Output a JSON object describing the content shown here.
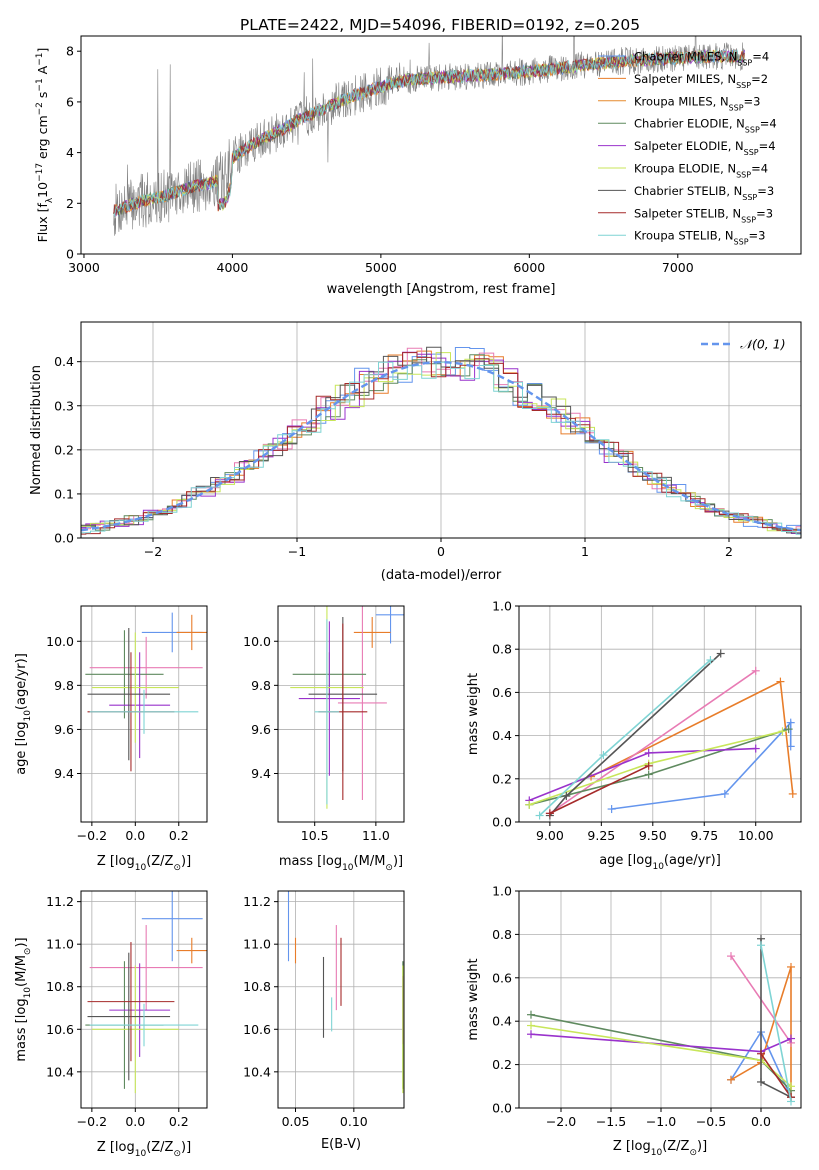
{
  "figure_title": "PLATE=2422, MJD=54096, FIBERID=0192, z=0.205",
  "colors": {
    "chabrier_miles": "#6495ed",
    "salpeter_miles": "#e87d2a",
    "kroupa_miles": "#e58a2e",
    "chabrier_elodie": "#5f8a5f",
    "salpeter_elodie": "#9932cc",
    "kroupa_elodie": "#c8e65a",
    "chabrier_stelib": "#555555",
    "salpeter_stelib": "#a52a2a",
    "kroupa_stelib": "#7fd4d4",
    "spectrum_data": "#808080",
    "pink_series": "#e87bb4",
    "grid": "#b0b0b0"
  },
  "chart_data": [
    {
      "type": "line",
      "id": "spectrum",
      "xlabel": "wavelength [Angstrom, rest frame]",
      "ylabel": "Flux [f",
      "ylabel_parts": {
        "a": "Flux [f",
        "sub": "λ",
        "b": "10",
        "sup1": "−17",
        "c": " erg cm",
        "sup2": "−2",
        "d": " s",
        "sup3": "−1",
        "e": " A",
        "sup4": "−1",
        "f": "]"
      },
      "xlim": [
        2980,
        7830
      ],
      "ylim": [
        0,
        8.6
      ],
      "xticks": [
        3000,
        4000,
        5000,
        6000,
        7000
      ],
      "yticks": [
        0,
        2,
        4,
        6,
        8
      ],
      "legend": [
        {
          "name": "Chabrier MILES, N",
          "sub": "SSP",
          "tail": "=4",
          "color": "#6495ed"
        },
        {
          "name": "Salpeter MILES, N",
          "sub": "SSP",
          "tail": "=2",
          "color": "#e87d2a"
        },
        {
          "name": "Kroupa MILES, N",
          "sub": "SSP",
          "tail": "=3",
          "color": "#e58a2e"
        },
        {
          "name": "Chabrier ELODIE, N",
          "sub": "SSP",
          "tail": "=4",
          "color": "#5f8a5f"
        },
        {
          "name": "Salpeter ELODIE, N",
          "sub": "SSP",
          "tail": "=4",
          "color": "#9932cc"
        },
        {
          "name": "Kroupa ELODIE, N",
          "sub": "SSP",
          "tail": "=4",
          "color": "#c8e65a"
        },
        {
          "name": "Chabrier STELIB, N",
          "sub": "SSP",
          "tail": "=3",
          "color": "#555555"
        },
        {
          "name": "Salpeter STELIB, N",
          "sub": "SSP",
          "tail": "=3",
          "color": "#a52a2a"
        },
        {
          "name": "Kroupa STELIB, N",
          "sub": "SSP",
          "tail": "=3",
          "color": "#7fd4d4"
        }
      ],
      "continuum": [
        [
          3200,
          1.7
        ],
        [
          3400,
          2.1
        ],
        [
          3550,
          2.3
        ],
        [
          3700,
          2.6
        ],
        [
          3850,
          2.8
        ],
        [
          3950,
          3.0
        ],
        [
          4000,
          3.8
        ],
        [
          4150,
          4.4
        ],
        [
          4300,
          4.8
        ],
        [
          4450,
          5.3
        ],
        [
          4600,
          5.7
        ],
        [
          4800,
          6.2
        ],
        [
          5000,
          6.6
        ],
        [
          5200,
          6.9
        ],
        [
          5500,
          7.0
        ],
        [
          5800,
          7.1
        ],
        [
          6000,
          7.2
        ],
        [
          6300,
          7.4
        ],
        [
          6600,
          7.6
        ],
        [
          6900,
          7.7
        ],
        [
          7200,
          7.8
        ],
        [
          7450,
          7.8
        ]
      ]
    },
    {
      "type": "line",
      "id": "residuals",
      "xlabel": "(data-model)/error",
      "ylabel": "Normed distribution",
      "xlim": [
        -2.5,
        2.5
      ],
      "ylim": [
        0,
        0.49
      ],
      "xticks": [
        -2,
        -1,
        0,
        1,
        2
      ],
      "yticks": [
        0.0,
        0.1,
        0.2,
        0.3,
        0.4
      ],
      "legend": [
        {
          "name": "𝒩(0, 1)",
          "color": "#6495ed",
          "style": "dashed"
        }
      ],
      "bin_width": 0.1
    },
    {
      "type": "scatter",
      "id": "age_vs_Z",
      "xlabel_parts": {
        "a": "Z [log",
        "sub": "10",
        "b": "(Z/Z",
        "sub2": "⊙",
        "c": ")]"
      },
      "ylabel_parts": {
        "a": "age  [log",
        "sub": "10",
        "b": "(age/yr)]"
      },
      "xlim": [
        -0.25,
        0.33
      ],
      "ylim": [
        9.18,
        10.16
      ],
      "xticks": [
        -0.2,
        0.0,
        0.2
      ],
      "yticks": [
        9.4,
        9.6,
        9.8,
        10.0
      ],
      "points": [
        {
          "x": 0.17,
          "y": 10.04,
          "xerr": 0.14,
          "yerr": 0.09,
          "color": "#6495ed"
        },
        {
          "x": 0.26,
          "y": 10.04,
          "xerr": 0.07,
          "yerr": 0.08,
          "color": "#e87d2a"
        },
        {
          "x": 0.05,
          "y": 9.88,
          "xerr": 0.26,
          "yerr": 0.14,
          "color": "#e87bb4"
        },
        {
          "x": -0.05,
          "y": 9.85,
          "xerr": 0.18,
          "yerr": 0.2,
          "color": "#5f8a5f"
        },
        {
          "x": 0.02,
          "y": 9.71,
          "xerr": 0.14,
          "yerr": 0.24,
          "color": "#9932cc"
        },
        {
          "x": 0.0,
          "y": 9.79,
          "xerr": 0.2,
          "yerr": 0.25,
          "color": "#c8e65a"
        },
        {
          "x": -0.03,
          "y": 9.76,
          "xerr": 0.19,
          "yerr": 0.3,
          "color": "#555555"
        },
        {
          "x": -0.02,
          "y": 9.68,
          "xerr": 0.2,
          "yerr": 0.27,
          "color": "#a52a2a"
        },
        {
          "x": 0.04,
          "y": 9.68,
          "xerr": 0.25,
          "yerr": 0.1,
          "color": "#7fd4d4"
        }
      ]
    },
    {
      "type": "scatter",
      "id": "age_vs_mass",
      "xlabel_parts": {
        "a": "mass [log",
        "sub": "10",
        "b": "(M/M",
        "sub2": "⊙",
        "c": ")]"
      },
      "xlim": [
        10.2,
        11.23
      ],
      "ylim": [
        9.18,
        10.16
      ],
      "xticks": [
        10.5,
        11.0
      ],
      "yticks": [
        9.4,
        9.6,
        9.8,
        10.0
      ],
      "points": [
        {
          "x": 11.12,
          "y": 10.12,
          "xerr": 0.12,
          "yerr": 0.13,
          "color": "#6495ed"
        },
        {
          "x": 10.97,
          "y": 10.04,
          "xerr": 0.15,
          "yerr": 0.07,
          "color": "#e87d2a"
        },
        {
          "x": 10.89,
          "y": 9.72,
          "xerr": 0.2,
          "yerr": 0.44,
          "color": "#e87bb4"
        },
        {
          "x": 10.62,
          "y": 9.85,
          "xerr": 0.3,
          "yerr": 0.1,
          "color": "#5f8a5f"
        },
        {
          "x": 10.62,
          "y": 9.74,
          "xerr": 0.25,
          "yerr": 0.35,
          "color": "#9932cc"
        },
        {
          "x": 10.6,
          "y": 9.79,
          "xerr": 0.3,
          "yerr": 0.55,
          "color": "#c8e65a"
        },
        {
          "x": 10.73,
          "y": 9.76,
          "xerr": 0.28,
          "yerr": 0.35,
          "color": "#555555"
        },
        {
          "x": 10.73,
          "y": 9.68,
          "xerr": 0.2,
          "yerr": 0.4,
          "color": "#a52a2a"
        },
        {
          "x": 10.6,
          "y": 9.68,
          "xerr": 0.1,
          "yerr": 0.42,
          "color": "#7fd4d4"
        }
      ]
    },
    {
      "type": "line",
      "id": "mass_weight_vs_age",
      "xlabel_parts": {
        "a": "age  [log",
        "sub": "10",
        "b": "(age/yr)]"
      },
      "ylabel": "mass weight",
      "xlim": [
        8.85,
        10.22
      ],
      "ylim": [
        0.0,
        1.0
      ],
      "xticks": [
        9.0,
        9.25,
        9.5,
        9.75,
        10.0
      ],
      "yticks": [
        0.0,
        0.2,
        0.4,
        0.6,
        0.8,
        1.0
      ],
      "series": [
        {
          "color": "#6495ed",
          "x": [
            9.3,
            9.85,
            10.17,
            10.17
          ],
          "y": [
            0.06,
            0.13,
            0.46,
            0.35
          ]
        },
        {
          "color": "#e87d2a",
          "x": [
            9.2,
            10.12,
            10.18
          ],
          "y": [
            0.21,
            0.65,
            0.13
          ]
        },
        {
          "color": "#e87bb4",
          "x": [
            9.0,
            10.0
          ],
          "y": [
            0.04,
            0.7
          ]
        },
        {
          "color": "#5f8a5f",
          "x": [
            8.9,
            9.48,
            10.16
          ],
          "y": [
            0.08,
            0.22,
            0.43
          ]
        },
        {
          "color": "#9932cc",
          "x": [
            8.9,
            9.48,
            10.0
          ],
          "y": [
            0.1,
            0.32,
            0.34
          ]
        },
        {
          "color": "#c8e65a",
          "x": [
            8.9,
            9.48,
            10.13
          ],
          "y": [
            0.08,
            0.27,
            0.42
          ]
        },
        {
          "color": "#555555",
          "x": [
            9.0,
            9.08,
            9.83
          ],
          "y": [
            0.03,
            0.12,
            0.78
          ]
        },
        {
          "color": "#a52a2a",
          "x": [
            9.0,
            9.48
          ],
          "y": [
            0.04,
            0.26
          ]
        },
        {
          "color": "#7fd4d4",
          "x": [
            8.95,
            9.26,
            9.78
          ],
          "y": [
            0.03,
            0.31,
            0.75
          ]
        }
      ]
    },
    {
      "type": "scatter",
      "id": "mass_vs_Z",
      "xlabel_parts": {
        "a": "Z [log",
        "sub": "10",
        "b": "(Z/Z",
        "sub2": "⊙",
        "c": ")]"
      },
      "ylabel_parts": {
        "a": "mass [log",
        "sub": "10",
        "b": "(M/M",
        "sub2": "⊙",
        "c": ")]"
      },
      "xlim": [
        -0.25,
        0.33
      ],
      "ylim": [
        10.23,
        11.25
      ],
      "xticks": [
        -0.2,
        0.0,
        0.2
      ],
      "yticks": [
        10.4,
        10.6,
        10.8,
        11.0,
        11.2
      ],
      "points": [
        {
          "x": 0.17,
          "y": 11.12,
          "xerr": 0.14,
          "yerr": 0.2,
          "color": "#6495ed"
        },
        {
          "x": 0.26,
          "y": 10.97,
          "xerr": 0.07,
          "yerr": 0.06,
          "color": "#e87d2a"
        },
        {
          "x": 0.05,
          "y": 10.89,
          "xerr": 0.26,
          "yerr": 0.2,
          "color": "#e87bb4"
        },
        {
          "x": -0.05,
          "y": 10.62,
          "xerr": 0.18,
          "yerr": 0.3,
          "color": "#5f8a5f"
        },
        {
          "x": 0.02,
          "y": 10.69,
          "xerr": 0.14,
          "yerr": 0.22,
          "color": "#9932cc"
        },
        {
          "x": 0.0,
          "y": 10.6,
          "xerr": 0.2,
          "yerr": 0.3,
          "color": "#c8e65a"
        },
        {
          "x": -0.03,
          "y": 10.66,
          "xerr": 0.19,
          "yerr": 0.3,
          "color": "#555555"
        },
        {
          "x": -0.02,
          "y": 10.73,
          "xerr": 0.2,
          "yerr": 0.28,
          "color": "#a52a2a"
        },
        {
          "x": 0.04,
          "y": 10.62,
          "xerr": 0.25,
          "yerr": 0.1,
          "color": "#7fd4d4"
        }
      ]
    },
    {
      "type": "scatter",
      "id": "mass_vs_ebv",
      "xlabel": "E(B-V)",
      "xlim": [
        0.035,
        0.143
      ],
      "ylim": [
        10.23,
        11.25
      ],
      "xticks": [
        0.05,
        0.1
      ],
      "yticks": [
        10.4,
        10.6,
        10.8,
        11.0,
        11.2
      ],
      "points": [
        {
          "x": 0.044,
          "y": 11.12,
          "yerr": 0.2,
          "color": "#6495ed"
        },
        {
          "x": 0.05,
          "y": 10.97,
          "yerr": 0.06,
          "color": "#e87d2a"
        },
        {
          "x": 0.085,
          "y": 10.89,
          "yerr": 0.2,
          "color": "#e87bb4"
        },
        {
          "x": 0.142,
          "y": 10.62,
          "yerr": 0.3,
          "color": "#5f8a5f"
        },
        {
          "x": 0.142,
          "y": 10.69,
          "yerr": 0.16,
          "color": "#9932cc"
        },
        {
          "x": 0.142,
          "y": 10.6,
          "yerr": 0.3,
          "color": "#c8e65a"
        },
        {
          "x": 0.074,
          "y": 10.75,
          "yerr": 0.19,
          "color": "#555555"
        },
        {
          "x": 0.089,
          "y": 10.87,
          "yerr": 0.16,
          "color": "#a52a2a"
        },
        {
          "x": 0.081,
          "y": 10.67,
          "yerr": 0.08,
          "color": "#7fd4d4"
        }
      ]
    },
    {
      "type": "line",
      "id": "mass_weight_vs_Z",
      "xlabel_parts": {
        "a": "Z [log",
        "sub": "10",
        "b": "(Z/Z",
        "sub2": "⊙",
        "c": ")]"
      },
      "ylabel": "mass weight",
      "xlim": [
        -2.42,
        0.4
      ],
      "ylim": [
        0.0,
        1.0
      ],
      "xticks": [
        -2.0,
        -1.5,
        -1.0,
        -0.5,
        0.0
      ],
      "yticks": [
        0.0,
        0.2,
        0.4,
        0.6,
        0.8,
        1.0
      ],
      "series": [
        {
          "color": "#6495ed",
          "x": [
            -0.3,
            0.0,
            0.3
          ],
          "y": [
            0.13,
            0.35,
            0.05
          ]
        },
        {
          "color": "#e87d2a",
          "x": [
            -0.3,
            0.0,
            0.3,
            0.3
          ],
          "y": [
            0.13,
            0.21,
            0.65,
            0.05
          ]
        },
        {
          "color": "#e87bb4",
          "x": [
            -0.3,
            0.3
          ],
          "y": [
            0.7,
            0.3
          ]
        },
        {
          "color": "#5f8a5f",
          "x": [
            -2.3,
            0.0,
            0.3
          ],
          "y": [
            0.43,
            0.22,
            0.08
          ]
        },
        {
          "color": "#9932cc",
          "x": [
            -2.3,
            0.0,
            0.3
          ],
          "y": [
            0.34,
            0.26,
            0.32
          ]
        },
        {
          "color": "#c8e65a",
          "x": [
            -2.3,
            0.0,
            0.3
          ],
          "y": [
            0.38,
            0.22,
            0.1
          ]
        },
        {
          "color": "#555555",
          "x": [
            0.0,
            0.0,
            0.3
          ],
          "y": [
            0.78,
            0.12,
            0.05
          ]
        },
        {
          "color": "#a52a2a",
          "x": [
            0.0,
            0.3
          ],
          "y": [
            0.25,
            0.05
          ]
        },
        {
          "color": "#7fd4d4",
          "x": [
            0.0,
            0.3
          ],
          "y": [
            0.75,
            0.03
          ]
        }
      ]
    }
  ]
}
